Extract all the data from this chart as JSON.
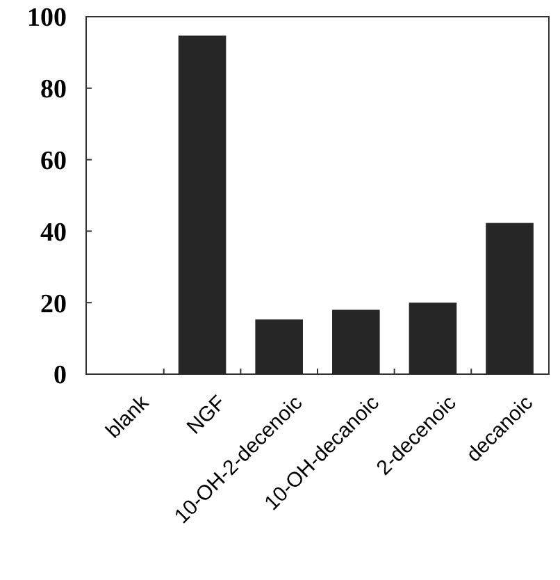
{
  "chart_data": {
    "type": "bar",
    "categories": [
      "blank",
      "NGF",
      "10-OH-2-decenoic",
      "10-OH-decanoic",
      "2-decenoic",
      "decanoic"
    ],
    "values": [
      0,
      94.7,
      15.3,
      18,
      20,
      42.3
    ],
    "color": "#262626",
    "ylim": [
      0,
      100
    ],
    "yticks": [
      0,
      20,
      40,
      60,
      80,
      100
    ],
    "grid": false
  }
}
